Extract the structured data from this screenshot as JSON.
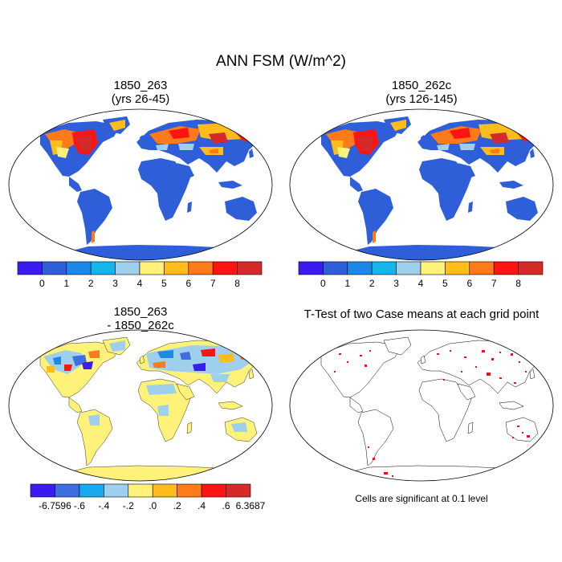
{
  "figure": {
    "title": "ANN FSM (W/m^2)",
    "panels": [
      {
        "id": "top-left",
        "title_line1": "1850_263",
        "title_line2": "(yrs 26-45)"
      },
      {
        "id": "top-right",
        "title_line1": "1850_262c",
        "title_line2": "(yrs 126-145)"
      },
      {
        "id": "bottom-left",
        "title_line1": "1850_263",
        "title_line2": "- 1850_262c"
      },
      {
        "id": "bottom-right",
        "title_line1": "T-Test of two Case means at each grid point"
      }
    ],
    "note": "Cells are significant at 0.1 level"
  },
  "chart_data": [
    {
      "type": "colorbar",
      "name": "absolute-fsm-colorbar",
      "tick_labels": [
        "0",
        "1",
        "2",
        "3",
        "4",
        "5",
        "6",
        "7",
        "8"
      ],
      "colors": [
        "#3b1cf0",
        "#2f5fd8",
        "#1e88e8",
        "#15b4ea",
        "#9ed0ee",
        "#fff27a",
        "#ffbc1a",
        "#ff7a1a",
        "#ff1414",
        "#d42a2a"
      ]
    },
    {
      "type": "colorbar",
      "name": "difference-fsm-colorbar",
      "tick_labels": [
        "-6.7596",
        "-.6",
        "-.4",
        "-.2",
        ".0",
        ".2",
        ".4",
        ".6",
        "6.3687"
      ],
      "colors": [
        "#3b1cf0",
        "#3f6ee0",
        "#18a8ee",
        "#9ed0ee",
        "#fff27a",
        "#ffbc1a",
        "#ff7a1a",
        "#ff1414",
        "#d42a2a"
      ]
    }
  ],
  "colors": {
    "ocean": "#ffffff",
    "land_base": "#2f5fd8",
    "diff_base": "#fff27a",
    "significant": "#e8141c"
  }
}
